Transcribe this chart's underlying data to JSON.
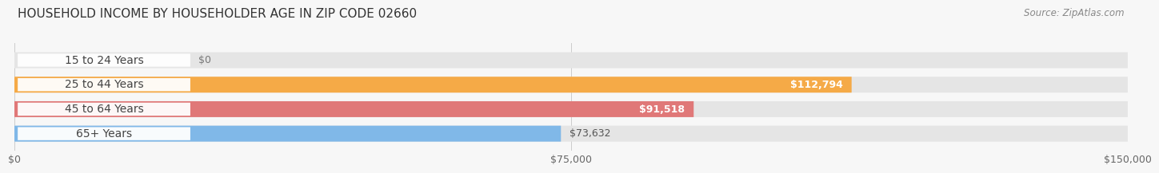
{
  "title": "HOUSEHOLD INCOME BY HOUSEHOLDER AGE IN ZIP CODE 02660",
  "source": "Source: ZipAtlas.com",
  "categories": [
    "15 to 24 Years",
    "25 to 44 Years",
    "45 to 64 Years",
    "65+ Years"
  ],
  "values": [
    0,
    112794,
    91518,
    73632
  ],
  "bar_colors": [
    "#f5a8bb",
    "#f5aa47",
    "#e07878",
    "#80b8e8"
  ],
  "value_labels": [
    "$0",
    "$112,794",
    "$91,518",
    "$73,632"
  ],
  "value_inside": [
    false,
    true,
    true,
    false
  ],
  "xlim": [
    0,
    150000
  ],
  "xticks": [
    0,
    75000,
    150000
  ],
  "xtick_labels": [
    "$0",
    "$75,000",
    "$150,000"
  ],
  "background_color": "#f7f7f7",
  "bar_background": "#e5e5e5",
  "title_fontsize": 11,
  "source_fontsize": 8.5,
  "label_fontsize": 10,
  "value_fontsize": 9,
  "tick_fontsize": 9,
  "bar_height": 0.65,
  "bar_gap": 0.35
}
